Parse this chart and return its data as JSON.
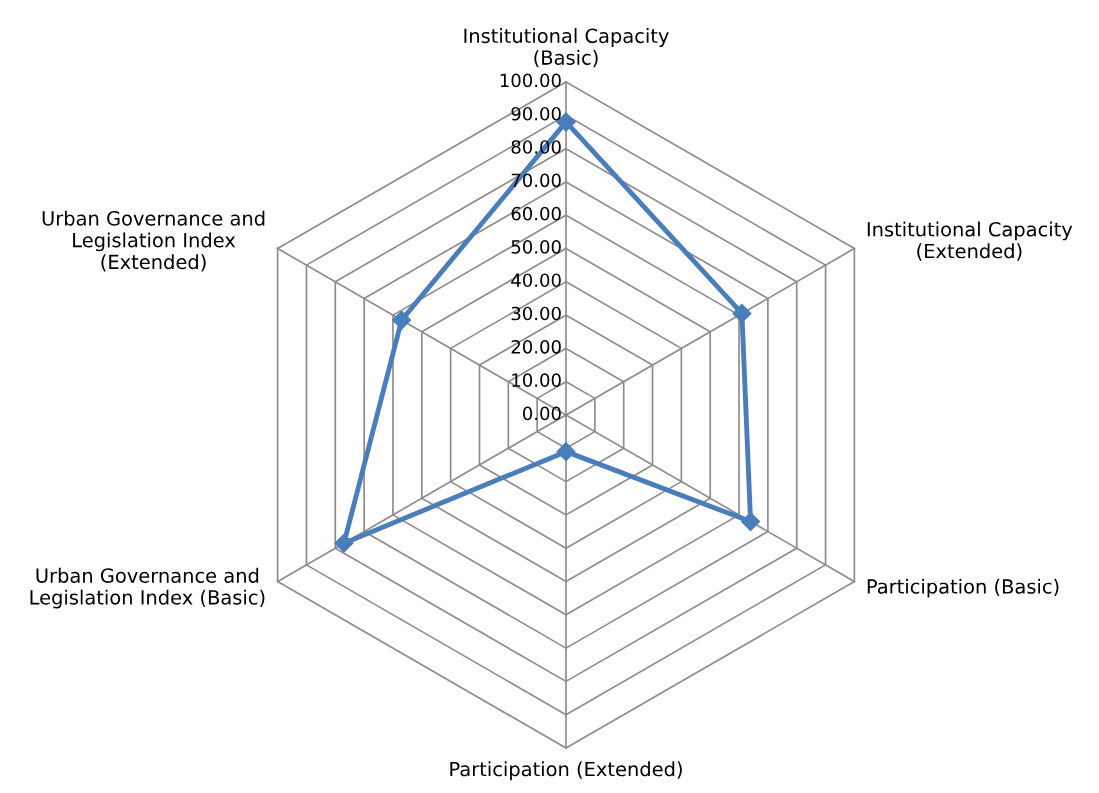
{
  "chart_data": {
    "type": "radar",
    "categories": [
      "Institutional Capacity\n(Basic)",
      "Institutional Capacity\n(Extended)",
      "Participation (Basic)",
      "Participation (Extended)",
      "Urban Governance and\nLegislation Index (Basic)",
      "Urban Governance and\nLegislation Index\n(Extended)"
    ],
    "series": [
      {
        "color": "#4a7ebb",
        "values": [
          88,
          61,
          64,
          11,
          77,
          57
        ]
      }
    ],
    "ylim": [
      0,
      100
    ],
    "yticks": [
      {
        "value": 0,
        "label": "0.00"
      },
      {
        "value": 10,
        "label": "10.00"
      },
      {
        "value": 20,
        "label": "20.00"
      },
      {
        "value": 30,
        "label": "30.00"
      },
      {
        "value": 40,
        "label": "40.00"
      },
      {
        "value": 50,
        "label": "50.00"
      },
      {
        "value": 60,
        "label": "60.00"
      },
      {
        "value": 70,
        "label": "70.00"
      },
      {
        "value": 80,
        "label": "80.00"
      },
      {
        "value": 90,
        "label": "90.00"
      },
      {
        "value": 100,
        "label": "100.00"
      }
    ],
    "grid": true,
    "marker": "diamond"
  }
}
